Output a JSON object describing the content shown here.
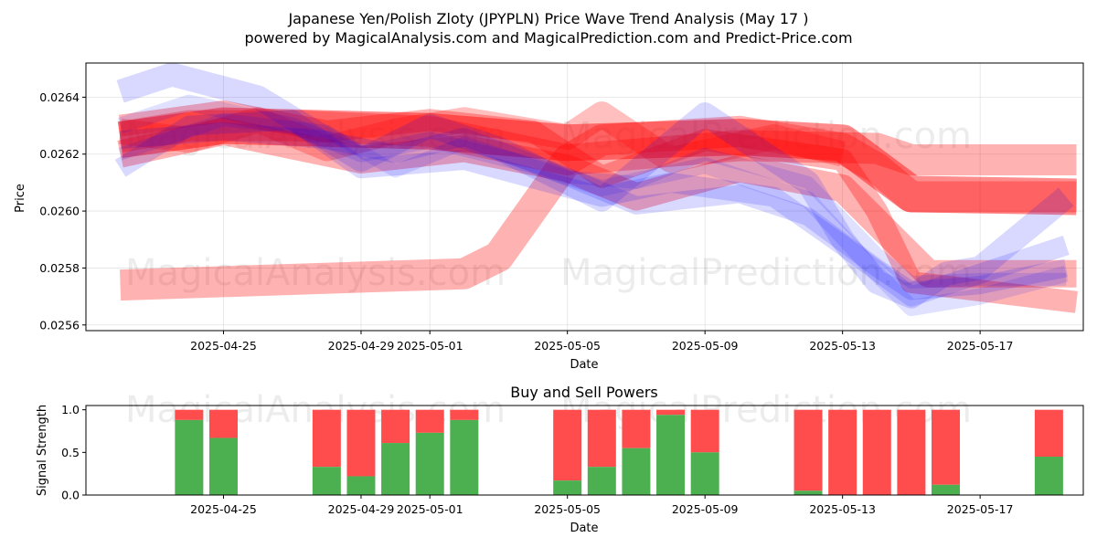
{
  "title": "Japanese Yen/Polish Zloty (JPYPLN) Price Wave Trend Analysis (May 17 )",
  "subtitle": "powered by MagicalAnalysis.com and MagicalPrediction.com and Predict-Price.com",
  "watermarks": [
    "MagicalAnalysis.com",
    "MagicalPrediction.com"
  ],
  "colors": {
    "red": "#ff0000",
    "blue": "#0000ff",
    "green": "#4caf50",
    "sell": "#ff4d4d"
  },
  "chart_data": [
    {
      "type": "line",
      "name": "price-wave",
      "xlabel": "Date",
      "ylabel": "Price",
      "xlim": [
        "2025-04-21",
        "2025-05-20"
      ],
      "ylim": [
        0.02558,
        0.02652
      ],
      "xticks": [
        "2025-04-25",
        "2025-04-29",
        "2025-05-01",
        "2025-05-05",
        "2025-05-09",
        "2025-05-13",
        "2025-05-17"
      ],
      "yticks": [
        0.0256,
        0.0258,
        0.026,
        0.0262,
        0.0264
      ],
      "grid": true,
      "bands": [
        {
          "color": "red",
          "width": 34,
          "opacity": 0.3,
          "points": [
            [
              "2025-04-22",
              0.02574
            ],
            [
              "2025-05-02",
              0.02578
            ],
            [
              "2025-05-03",
              0.02584
            ],
            [
              "2025-05-05",
              0.02618
            ],
            [
              "2025-05-10",
              0.02623
            ],
            [
              "2025-05-14",
              0.02622
            ],
            [
              "2025-05-15",
              0.02618
            ],
            [
              "2025-05-19.8",
              0.02618
            ]
          ]
        },
        {
          "color": "red",
          "width": 34,
          "opacity": 0.3,
          "points": [
            [
              "2025-04-22",
              0.02626
            ],
            [
              "2025-04-24",
              0.0263
            ],
            [
              "2025-04-27",
              0.0263
            ],
            [
              "2025-05-01",
              0.02628
            ],
            [
              "2025-05-05",
              0.02618
            ],
            [
              "2025-05-06",
              0.02625
            ],
            [
              "2025-05-10",
              0.02628
            ],
            [
              "2025-05-13",
              0.02622
            ],
            [
              "2025-05-14",
              0.02615
            ],
            [
              "2025-05-15",
              0.02605
            ],
            [
              "2025-05-19.8",
              0.02605
            ]
          ]
        },
        {
          "color": "red",
          "width": 24,
          "opacity": 0.3,
          "points": [
            [
              "2025-04-22",
              0.0263
            ],
            [
              "2025-04-25",
              0.02635
            ],
            [
              "2025-04-28",
              0.02628
            ],
            [
              "2025-05-01",
              0.02632
            ],
            [
              "2025-05-04",
              0.02628
            ],
            [
              "2025-05-06",
              0.02612
            ],
            [
              "2025-05-09",
              0.02625
            ],
            [
              "2025-05-13",
              0.02618
            ],
            [
              "2025-05-14",
              0.026
            ],
            [
              "2025-05-15",
              0.02575
            ],
            [
              "2025-05-19.8",
              0.02568
            ]
          ]
        },
        {
          "color": "red",
          "width": 30,
          "opacity": 0.3,
          "points": [
            [
              "2025-04-22",
              0.0262
            ],
            [
              "2025-04-25",
              0.02628
            ],
            [
              "2025-04-29",
              0.02618
            ],
            [
              "2025-05-02",
              0.02622
            ],
            [
              "2025-05-05",
              0.02615
            ],
            [
              "2025-05-07",
              0.02605
            ],
            [
              "2025-05-10",
              0.02615
            ],
            [
              "2025-05-13",
              0.02608
            ],
            [
              "2025-05-14.5",
              0.0259
            ],
            [
              "2025-05-15.5",
              0.02578
            ],
            [
              "2025-05-19.8",
              0.02578
            ]
          ]
        },
        {
          "color": "red",
          "width": 40,
          "opacity": 0.45,
          "points": [
            [
              "2025-04-22",
              0.02625
            ],
            [
              "2025-04-25",
              0.0263
            ],
            [
              "2025-05-01",
              0.02628
            ],
            [
              "2025-05-05",
              0.02624
            ],
            [
              "2025-05-10",
              0.02626
            ],
            [
              "2025-05-13",
              0.02624
            ],
            [
              "2025-05-14",
              0.02615
            ],
            [
              "2025-05-15",
              0.02606
            ],
            [
              "2025-05-19.8",
              0.02605
            ]
          ]
        },
        {
          "color": "red",
          "width": 28,
          "opacity": 0.25,
          "points": [
            [
              "2025-04-22",
              0.02628
            ],
            [
              "2025-04-24",
              0.02625
            ],
            [
              "2025-04-26",
              0.02632
            ],
            [
              "2025-04-28",
              0.02622
            ],
            [
              "2025-04-30",
              0.02628
            ],
            [
              "2025-05-02",
              0.02632
            ],
            [
              "2025-05-05",
              0.02626
            ],
            [
              "2025-05-06",
              0.02634
            ],
            [
              "2025-05-08",
              0.02618
            ],
            [
              "2025-05-11",
              0.02626
            ],
            [
              "2025-05-13",
              0.0262
            ]
          ]
        },
        {
          "color": "blue",
          "width": 26,
          "opacity": 0.15,
          "points": [
            [
              "2025-04-22",
              0.02642
            ],
            [
              "2025-04-23.5",
              0.02648
            ],
            [
              "2025-04-26",
              0.0264
            ],
            [
              "2025-04-29",
              0.02618
            ],
            [
              "2025-05-01",
              0.0263
            ],
            [
              "2025-05-03",
              0.02622
            ],
            [
              "2025-05-06",
              0.02604
            ],
            [
              "2025-05-09",
              0.02634
            ],
            [
              "2025-05-12",
              0.0261
            ],
            [
              "2025-05-13",
              0.0259
            ],
            [
              "2025-05-14",
              0.02575
            ],
            [
              "2025-05-15",
              0.0257
            ],
            [
              "2025-05-16",
              0.02578
            ],
            [
              "2025-05-17",
              0.0258
            ],
            [
              "2025-05-19.5",
              0.02605
            ]
          ]
        },
        {
          "color": "blue",
          "width": 22,
          "opacity": 0.15,
          "points": [
            [
              "2025-04-22",
              0.02615
            ],
            [
              "2025-04-24",
              0.0263
            ],
            [
              "2025-04-27",
              0.02632
            ],
            [
              "2025-04-29",
              0.02615
            ],
            [
              "2025-05-02",
              0.02618
            ],
            [
              "2025-05-06",
              0.02605
            ],
            [
              "2025-05-08",
              0.0261
            ],
            [
              "2025-05-11",
              0.02605
            ],
            [
              "2025-05-13",
              0.02588
            ],
            [
              "2025-05-15",
              0.0257
            ],
            [
              "2025-05-17",
              0.02578
            ],
            [
              "2025-05-19.5",
              0.02588
            ]
          ]
        },
        {
          "color": "blue",
          "width": 20,
          "opacity": 0.15,
          "points": [
            [
              "2025-04-22",
              0.02625
            ],
            [
              "2025-04-25",
              0.02628
            ],
            [
              "2025-04-28",
              0.02625
            ],
            [
              "2025-04-30",
              0.0262
            ],
            [
              "2025-05-02",
              0.02626
            ],
            [
              "2025-05-05",
              0.02612
            ],
            [
              "2025-05-07",
              0.02602
            ],
            [
              "2025-05-10",
              0.02606
            ],
            [
              "2025-05-12",
              0.02598
            ],
            [
              "2025-05-14",
              0.0258
            ],
            [
              "2025-05-15",
              0.02572
            ],
            [
              "2025-05-17",
              0.02574
            ],
            [
              "2025-05-19.5",
              0.0258
            ]
          ]
        },
        {
          "color": "blue",
          "width": 18,
          "opacity": 0.12,
          "points": [
            [
              "2025-04-22",
              0.0263
            ],
            [
              "2025-04-24",
              0.02638
            ],
            [
              "2025-04-27",
              0.0263
            ],
            [
              "2025-04-29",
              0.0262
            ],
            [
              "2025-05-01",
              0.02625
            ],
            [
              "2025-05-04",
              0.02616
            ],
            [
              "2025-05-06",
              0.02608
            ],
            [
              "2025-05-09",
              0.02616
            ],
            [
              "2025-05-12",
              0.02604
            ],
            [
              "2025-05-14",
              0.02578
            ],
            [
              "2025-05-15",
              0.02566
            ],
            [
              "2025-05-17",
              0.0257
            ],
            [
              "2025-05-19.5",
              0.02578
            ]
          ]
        },
        {
          "color": "blue",
          "width": 14,
          "opacity": 0.12,
          "points": [
            [
              "2025-04-22",
              0.0262
            ],
            [
              "2025-04-25",
              0.02632
            ],
            [
              "2025-04-28",
              0.02628
            ],
            [
              "2025-04-30",
              0.02614
            ],
            [
              "2025-05-02",
              0.02624
            ],
            [
              "2025-05-05",
              0.02612
            ],
            [
              "2025-05-07",
              0.0261
            ],
            [
              "2025-05-09",
              0.0262
            ],
            [
              "2025-05-12",
              0.0261
            ],
            [
              "2025-05-14",
              0.02585
            ],
            [
              "2025-05-15",
              0.02575
            ],
            [
              "2025-05-17",
              0.02576
            ],
            [
              "2025-05-19.5",
              0.02576
            ]
          ]
        }
      ]
    },
    {
      "type": "bar",
      "name": "buy-sell-powers",
      "title": "Buy and Sell Powers",
      "xlabel": "Date",
      "ylabel": "Signal Strength",
      "ylim": [
        0,
        1.05
      ],
      "yticks": [
        0.0,
        0.5,
        1.0
      ],
      "xticks": [
        "2025-04-25",
        "2025-04-29",
        "2025-05-01",
        "2025-05-05",
        "2025-05-09",
        "2025-05-13",
        "2025-05-17"
      ],
      "bars": [
        {
          "date": "2025-04-24",
          "buy": 0.88
        },
        {
          "date": "2025-04-25",
          "buy": 0.67
        },
        {
          "date": "2025-04-28",
          "buy": 0.33
        },
        {
          "date": "2025-04-29",
          "buy": 0.22
        },
        {
          "date": "2025-04-30",
          "buy": 0.61
        },
        {
          "date": "2025-05-01",
          "buy": 0.73
        },
        {
          "date": "2025-05-02",
          "buy": 0.88
        },
        {
          "date": "2025-05-05",
          "buy": 0.17
        },
        {
          "date": "2025-05-06",
          "buy": 0.33
        },
        {
          "date": "2025-05-07",
          "buy": 0.55
        },
        {
          "date": "2025-05-08",
          "buy": 0.94
        },
        {
          "date": "2025-05-09",
          "buy": 0.5
        },
        {
          "date": "2025-05-12",
          "buy": 0.05
        },
        {
          "date": "2025-05-13",
          "buy": 0.0
        },
        {
          "date": "2025-05-14",
          "buy": 0.0
        },
        {
          "date": "2025-05-15",
          "buy": 0.0
        },
        {
          "date": "2025-05-16",
          "buy": 0.12
        },
        {
          "date": "2025-05-19",
          "buy": 0.45
        }
      ]
    }
  ]
}
